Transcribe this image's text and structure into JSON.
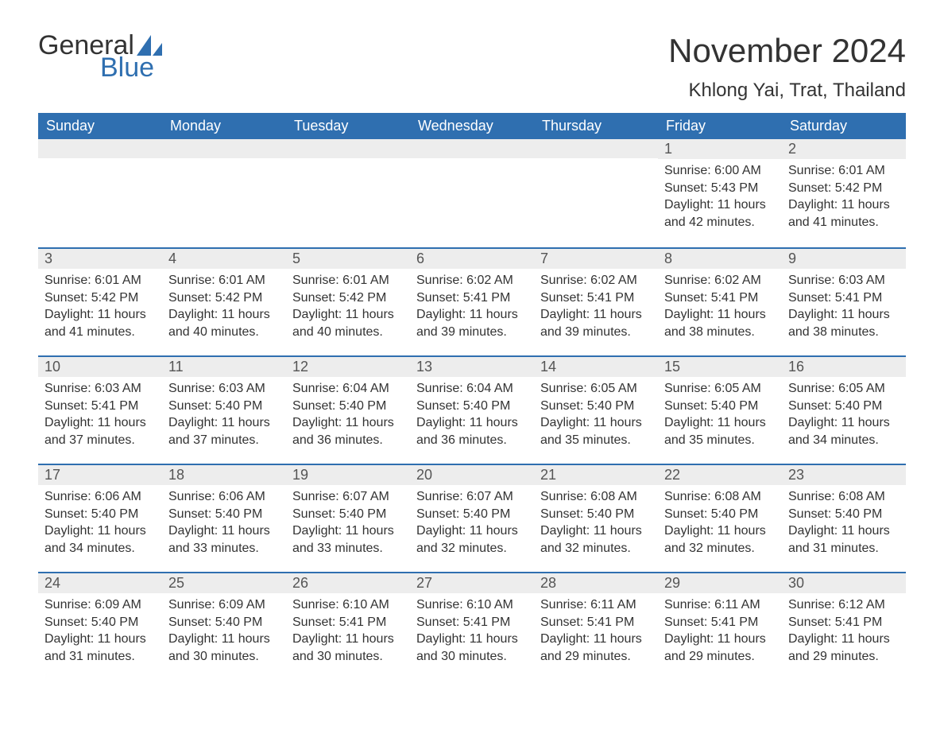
{
  "logo": {
    "text1": "General",
    "text2": "Blue",
    "brand_color": "#2f6fb0"
  },
  "title": "November 2024",
  "location": "Khlong Yai, Trat, Thailand",
  "colors": {
    "header_bg": "#2f6fb0",
    "header_text": "#ffffff",
    "band_bg": "#ededed",
    "page_bg": "#ffffff",
    "text": "#333333"
  },
  "typography": {
    "title_fontsize": 42,
    "location_fontsize": 24,
    "dow_fontsize": 18,
    "body_fontsize": 16
  },
  "calendar": {
    "type": "table",
    "days_of_week": [
      "Sunday",
      "Monday",
      "Tuesday",
      "Wednesday",
      "Thursday",
      "Friday",
      "Saturday"
    ],
    "weeks": [
      [
        {
          "blank": true
        },
        {
          "blank": true
        },
        {
          "blank": true
        },
        {
          "blank": true
        },
        {
          "blank": true
        },
        {
          "day": "1",
          "sunrise": "Sunrise: 6:00 AM",
          "sunset": "Sunset: 5:43 PM",
          "daylight1": "Daylight: 11 hours",
          "daylight2": "and 42 minutes."
        },
        {
          "day": "2",
          "sunrise": "Sunrise: 6:01 AM",
          "sunset": "Sunset: 5:42 PM",
          "daylight1": "Daylight: 11 hours",
          "daylight2": "and 41 minutes."
        }
      ],
      [
        {
          "day": "3",
          "sunrise": "Sunrise: 6:01 AM",
          "sunset": "Sunset: 5:42 PM",
          "daylight1": "Daylight: 11 hours",
          "daylight2": "and 41 minutes."
        },
        {
          "day": "4",
          "sunrise": "Sunrise: 6:01 AM",
          "sunset": "Sunset: 5:42 PM",
          "daylight1": "Daylight: 11 hours",
          "daylight2": "and 40 minutes."
        },
        {
          "day": "5",
          "sunrise": "Sunrise: 6:01 AM",
          "sunset": "Sunset: 5:42 PM",
          "daylight1": "Daylight: 11 hours",
          "daylight2": "and 40 minutes."
        },
        {
          "day": "6",
          "sunrise": "Sunrise: 6:02 AM",
          "sunset": "Sunset: 5:41 PM",
          "daylight1": "Daylight: 11 hours",
          "daylight2": "and 39 minutes."
        },
        {
          "day": "7",
          "sunrise": "Sunrise: 6:02 AM",
          "sunset": "Sunset: 5:41 PM",
          "daylight1": "Daylight: 11 hours",
          "daylight2": "and 39 minutes."
        },
        {
          "day": "8",
          "sunrise": "Sunrise: 6:02 AM",
          "sunset": "Sunset: 5:41 PM",
          "daylight1": "Daylight: 11 hours",
          "daylight2": "and 38 minutes."
        },
        {
          "day": "9",
          "sunrise": "Sunrise: 6:03 AM",
          "sunset": "Sunset: 5:41 PM",
          "daylight1": "Daylight: 11 hours",
          "daylight2": "and 38 minutes."
        }
      ],
      [
        {
          "day": "10",
          "sunrise": "Sunrise: 6:03 AM",
          "sunset": "Sunset: 5:41 PM",
          "daylight1": "Daylight: 11 hours",
          "daylight2": "and 37 minutes."
        },
        {
          "day": "11",
          "sunrise": "Sunrise: 6:03 AM",
          "sunset": "Sunset: 5:40 PM",
          "daylight1": "Daylight: 11 hours",
          "daylight2": "and 37 minutes."
        },
        {
          "day": "12",
          "sunrise": "Sunrise: 6:04 AM",
          "sunset": "Sunset: 5:40 PM",
          "daylight1": "Daylight: 11 hours",
          "daylight2": "and 36 minutes."
        },
        {
          "day": "13",
          "sunrise": "Sunrise: 6:04 AM",
          "sunset": "Sunset: 5:40 PM",
          "daylight1": "Daylight: 11 hours",
          "daylight2": "and 36 minutes."
        },
        {
          "day": "14",
          "sunrise": "Sunrise: 6:05 AM",
          "sunset": "Sunset: 5:40 PM",
          "daylight1": "Daylight: 11 hours",
          "daylight2": "and 35 minutes."
        },
        {
          "day": "15",
          "sunrise": "Sunrise: 6:05 AM",
          "sunset": "Sunset: 5:40 PM",
          "daylight1": "Daylight: 11 hours",
          "daylight2": "and 35 minutes."
        },
        {
          "day": "16",
          "sunrise": "Sunrise: 6:05 AM",
          "sunset": "Sunset: 5:40 PM",
          "daylight1": "Daylight: 11 hours",
          "daylight2": "and 34 minutes."
        }
      ],
      [
        {
          "day": "17",
          "sunrise": "Sunrise: 6:06 AM",
          "sunset": "Sunset: 5:40 PM",
          "daylight1": "Daylight: 11 hours",
          "daylight2": "and 34 minutes."
        },
        {
          "day": "18",
          "sunrise": "Sunrise: 6:06 AM",
          "sunset": "Sunset: 5:40 PM",
          "daylight1": "Daylight: 11 hours",
          "daylight2": "and 33 minutes."
        },
        {
          "day": "19",
          "sunrise": "Sunrise: 6:07 AM",
          "sunset": "Sunset: 5:40 PM",
          "daylight1": "Daylight: 11 hours",
          "daylight2": "and 33 minutes."
        },
        {
          "day": "20",
          "sunrise": "Sunrise: 6:07 AM",
          "sunset": "Sunset: 5:40 PM",
          "daylight1": "Daylight: 11 hours",
          "daylight2": "and 32 minutes."
        },
        {
          "day": "21",
          "sunrise": "Sunrise: 6:08 AM",
          "sunset": "Sunset: 5:40 PM",
          "daylight1": "Daylight: 11 hours",
          "daylight2": "and 32 minutes."
        },
        {
          "day": "22",
          "sunrise": "Sunrise: 6:08 AM",
          "sunset": "Sunset: 5:40 PM",
          "daylight1": "Daylight: 11 hours",
          "daylight2": "and 32 minutes."
        },
        {
          "day": "23",
          "sunrise": "Sunrise: 6:08 AM",
          "sunset": "Sunset: 5:40 PM",
          "daylight1": "Daylight: 11 hours",
          "daylight2": "and 31 minutes."
        }
      ],
      [
        {
          "day": "24",
          "sunrise": "Sunrise: 6:09 AM",
          "sunset": "Sunset: 5:40 PM",
          "daylight1": "Daylight: 11 hours",
          "daylight2": "and 31 minutes."
        },
        {
          "day": "25",
          "sunrise": "Sunrise: 6:09 AM",
          "sunset": "Sunset: 5:40 PM",
          "daylight1": "Daylight: 11 hours",
          "daylight2": "and 30 minutes."
        },
        {
          "day": "26",
          "sunrise": "Sunrise: 6:10 AM",
          "sunset": "Sunset: 5:41 PM",
          "daylight1": "Daylight: 11 hours",
          "daylight2": "and 30 minutes."
        },
        {
          "day": "27",
          "sunrise": "Sunrise: 6:10 AM",
          "sunset": "Sunset: 5:41 PM",
          "daylight1": "Daylight: 11 hours",
          "daylight2": "and 30 minutes."
        },
        {
          "day": "28",
          "sunrise": "Sunrise: 6:11 AM",
          "sunset": "Sunset: 5:41 PM",
          "daylight1": "Daylight: 11 hours",
          "daylight2": "and 29 minutes."
        },
        {
          "day": "29",
          "sunrise": "Sunrise: 6:11 AM",
          "sunset": "Sunset: 5:41 PM",
          "daylight1": "Daylight: 11 hours",
          "daylight2": "and 29 minutes."
        },
        {
          "day": "30",
          "sunrise": "Sunrise: 6:12 AM",
          "sunset": "Sunset: 5:41 PM",
          "daylight1": "Daylight: 11 hours",
          "daylight2": "and 29 minutes."
        }
      ]
    ]
  }
}
